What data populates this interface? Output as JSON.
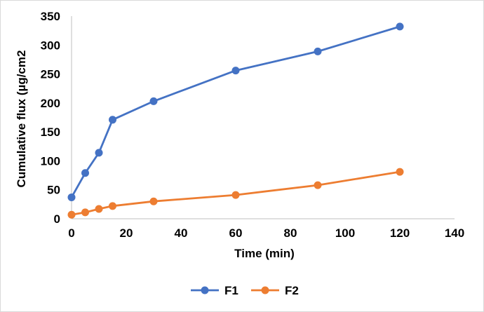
{
  "chart_data": {
    "type": "line",
    "title": "",
    "xlabel": "Time (min)",
    "ylabel": "Cumulative flux (µg/cm2",
    "xlim": [
      0,
      140
    ],
    "ylim": [
      0,
      350
    ],
    "xticks": [
      0,
      20,
      40,
      60,
      80,
      100,
      120,
      140
    ],
    "yticks": [
      0,
      50,
      100,
      150,
      200,
      250,
      300,
      350
    ],
    "grid": false,
    "legend_position": "bottom",
    "x": [
      0,
      5,
      10,
      15,
      30,
      60,
      90,
      120
    ],
    "series": [
      {
        "name": "F1",
        "color": "#4472C4",
        "values": [
          37,
          79,
          114,
          171,
          203,
          256,
          289,
          332
        ]
      },
      {
        "name": "F2",
        "color": "#ED7D31",
        "values": [
          7,
          11,
          17,
          22,
          30,
          41,
          58,
          81
        ]
      }
    ]
  }
}
